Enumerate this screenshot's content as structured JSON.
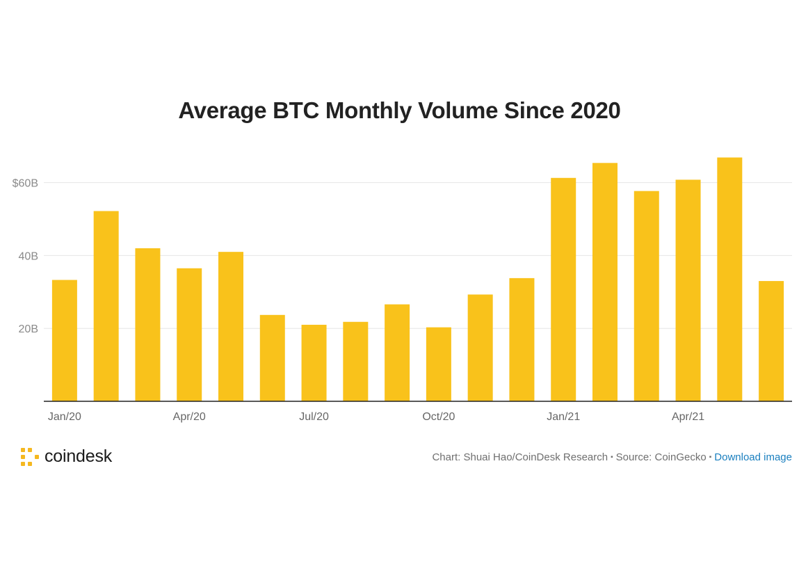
{
  "chart_data": {
    "type": "bar",
    "title": "Average BTC Monthly Volume Since 2020",
    "xlabel": "",
    "ylabel": "",
    "categories": [
      "Jan/20",
      "Feb/20",
      "Mar/20",
      "Apr/20",
      "May/20",
      "Jun/20",
      "Jul/20",
      "Aug/20",
      "Sep/20",
      "Oct/20",
      "Nov/20",
      "Dec/20",
      "Jan/21",
      "Feb/21",
      "Mar/21",
      "Apr/21",
      "May/21",
      "Jun/21"
    ],
    "values": [
      33.3,
      52.2,
      42.0,
      36.5,
      41.0,
      23.7,
      21.0,
      21.8,
      26.6,
      20.3,
      29.3,
      33.8,
      61.3,
      65.4,
      57.7,
      60.8,
      66.9,
      33.0
    ],
    "x_tick_labels": [
      "Jan/20",
      "Apr/20",
      "Jul/20",
      "Oct/20",
      "Jan/21",
      "Apr/21"
    ],
    "y_tick_labels": [
      {
        "value": 20,
        "label": "20B"
      },
      {
        "value": 40,
        "label": "40B"
      },
      {
        "value": 60,
        "label": "$60B"
      }
    ],
    "ylim": [
      0,
      70
    ],
    "grid": true,
    "bar_color": "#f9c21b",
    "grid_color": "#e6e6e6",
    "axis_color": "#222222"
  },
  "footer": {
    "logo_text": "coindesk",
    "credit_chart": "Chart: Shuai Hao/CoinDesk Research",
    "separator": "▪",
    "credit_source": "Source: CoinGecko",
    "download_link": "Download image"
  },
  "colors": {
    "brand_yellow": "#f5b820",
    "link_blue": "#1a7fbf"
  }
}
